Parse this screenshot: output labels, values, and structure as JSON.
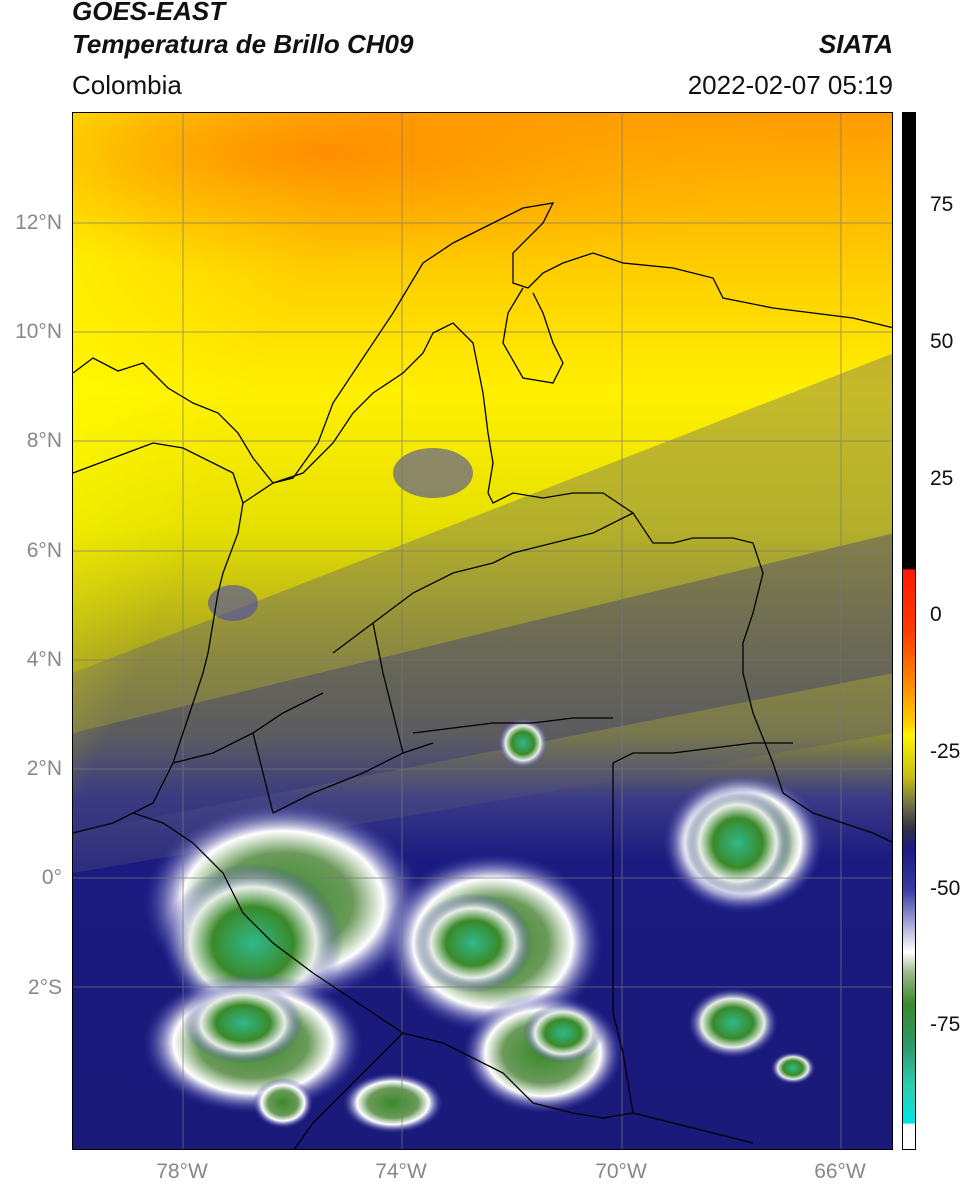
{
  "header": {
    "satellite": "GOES-EAST",
    "product": "Temperatura de Brillo CH09",
    "organization": "SIATA",
    "region": "Colombia",
    "timestamp": "2022-02-07 05:19"
  },
  "map": {
    "lat_labels": [
      "12°N",
      "10°N",
      "8°N",
      "6°N",
      "4°N",
      "2°N",
      "0°",
      "2°S"
    ],
    "lon_labels": [
      "78°W",
      "74°W",
      "70°W",
      "66°W"
    ]
  },
  "colorbar": {
    "tick_labels": [
      "75",
      "50",
      "25",
      "0",
      "-25",
      "-50",
      "-75"
    ],
    "colors": {
      "black": "#000000",
      "red": "#ff1a00",
      "orange": "#ff9a00",
      "yellow": "#fff500",
      "olive": "#8a8a2a",
      "gray": "#555566",
      "navy": "#1a1a80",
      "blue": "#3a3aa8",
      "white": "#ffffff",
      "green": "#3a8a2a",
      "teal": "#2ad0b0",
      "cyan": "#00e5e5"
    }
  }
}
